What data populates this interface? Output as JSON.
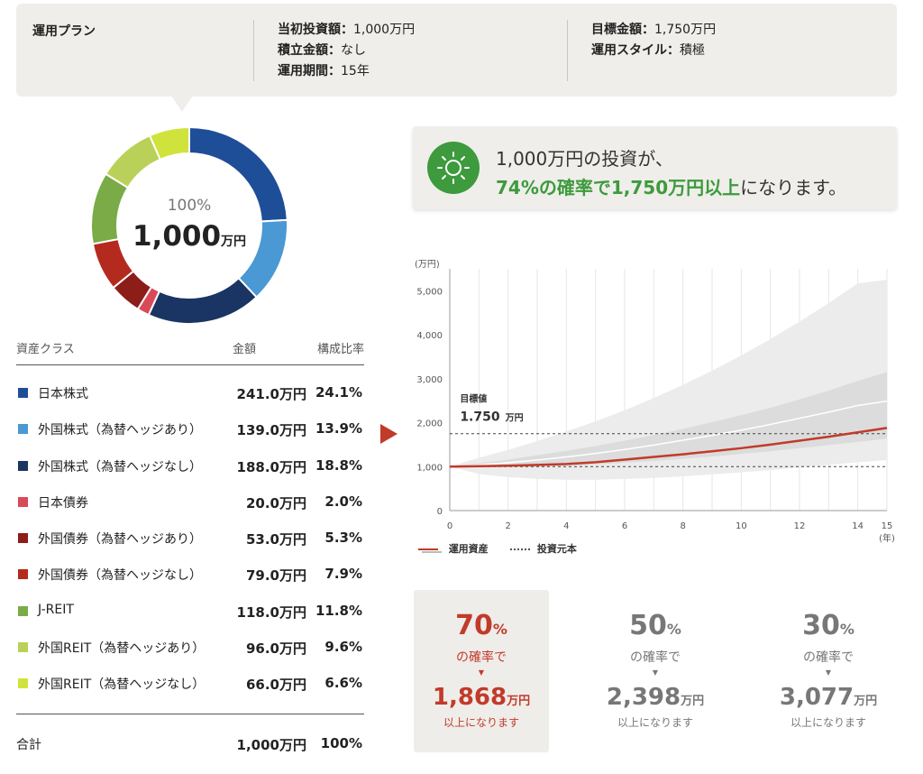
{
  "plan": {
    "title": "運用プラン",
    "initial_label": "当初投資額：",
    "initial_value": "1,000万円",
    "monthly_label": "積立金額：",
    "monthly_value": "なし",
    "period_label": "運用期間：",
    "period_value": "15年",
    "target_label": "目標金額：",
    "target_value": "1,750万円",
    "style_label": "運用スタイル：",
    "style_value": "積極"
  },
  "donut": {
    "percent": "100%",
    "total_number": "1,000",
    "total_unit": "万円"
  },
  "table": {
    "header_class": "資産クラス",
    "header_amount": "金額",
    "header_ratio": "構成比率",
    "rows": [
      {
        "name": "日本株式",
        "amount": "241.0万円",
        "ratio": "24.1%",
        "value": 24.1,
        "color": "#1f4e98"
      },
      {
        "name": "外国株式（為替ヘッジあり）",
        "amount": "139.0万円",
        "ratio": "13.9%",
        "value": 13.9,
        "color": "#4a98d4"
      },
      {
        "name": "外国株式（為替ヘッジなし）",
        "amount": "188.0万円",
        "ratio": "18.8%",
        "value": 18.8,
        "color": "#1a3563"
      },
      {
        "name": "日本債券",
        "amount": "20.0万円",
        "ratio": "2.0%",
        "value": 2.0,
        "color": "#d94a58"
      },
      {
        "name": "外国債券（為替ヘッジあり）",
        "amount": "53.0万円",
        "ratio": "5.3%",
        "value": 5.3,
        "color": "#8c1d18"
      },
      {
        "name": "外国債券（為替ヘッジなし）",
        "amount": "79.0万円",
        "ratio": "7.9%",
        "value": 7.9,
        "color": "#b52a1e"
      },
      {
        "name": "J-REIT",
        "amount": "118.0万円",
        "ratio": "11.8%",
        "value": 11.8,
        "color": "#7aab47"
      },
      {
        "name": "外国REIT（為替ヘッジあり）",
        "amount": "96.0万円",
        "ratio": "9.6%",
        "value": 9.6,
        "color": "#b9d159"
      },
      {
        "name": "外国REIT（為替ヘッジなし）",
        "amount": "66.0万円",
        "ratio": "6.6%",
        "value": 6.6,
        "color": "#cfe33c"
      }
    ],
    "total_label": "合計",
    "total_amount": "1,000万円",
    "total_ratio": "100%"
  },
  "message": {
    "line1": "1,000万円の投資が、",
    "highlight": "74%の確率で1,750万円以上",
    "line2_rest": "になります。"
  },
  "chart_data": {
    "type": "area",
    "yunit": "(万円)",
    "xunit": "(年)",
    "xlim": [
      0,
      15
    ],
    "ylim": [
      0,
      5500
    ],
    "xticks": [
      0,
      2,
      4,
      6,
      8,
      10,
      12,
      14,
      15
    ],
    "yticks": [
      0,
      1000,
      2000,
      3000,
      4000,
      5000
    ],
    "ytick_labels": [
      "0",
      "1,000",
      "2,000",
      "3,000",
      "4,000",
      "5,000"
    ],
    "target_label": "目標値",
    "target_value_text": "1.750",
    "target_unit": "万円",
    "target": 1750,
    "principal": 1000,
    "x": [
      0,
      1,
      2,
      3,
      4,
      5,
      6,
      7,
      8,
      9,
      10,
      11,
      12,
      13,
      14,
      15
    ],
    "outer_upper": [
      1000,
      1200,
      1380,
      1580,
      1800,
      2030,
      2280,
      2560,
      2860,
      3180,
      3530,
      3900,
      4300,
      4720,
      5170,
      5250
    ],
    "outer_lower": [
      1000,
      830,
      760,
      720,
      700,
      700,
      720,
      740,
      780,
      820,
      870,
      920,
      980,
      1040,
      1100,
      1150
    ],
    "inner_upper": [
      1000,
      1080,
      1160,
      1260,
      1360,
      1470,
      1590,
      1720,
      1860,
      2010,
      2170,
      2340,
      2530,
      2730,
      2950,
      3150
    ],
    "inner_lower": [
      1000,
      980,
      990,
      1000,
      1020,
      1050,
      1090,
      1130,
      1180,
      1230,
      1290,
      1350,
      1420,
      1490,
      1560,
      1640
    ],
    "median": [
      1000,
      1040,
      1090,
      1150,
      1220,
      1300,
      1390,
      1490,
      1600,
      1710,
      1830,
      1960,
      2100,
      2240,
      2390,
      2490
    ],
    "series": [
      {
        "name": "運用資産",
        "color": "#c23a2a",
        "values": [
          1000,
          1010,
          1020,
          1040,
          1060,
          1100,
          1160,
          1220,
          1280,
          1350,
          1420,
          1500,
          1590,
          1680,
          1780,
          1880
        ]
      },
      {
        "name": "投資元本",
        "color": "#555555",
        "values": [
          1000,
          1000,
          1000,
          1000,
          1000,
          1000,
          1000,
          1000,
          1000,
          1000,
          1000,
          1000,
          1000,
          1000,
          1000,
          1000
        ]
      }
    ]
  },
  "cards": [
    {
      "prob_num": "70",
      "prob_unit": "%",
      "line1": "の確率で",
      "tri": "▼",
      "amount_num": "1,868",
      "amount_unit": "万円",
      "line2": "以上になります",
      "selected": true
    },
    {
      "prob_num": "50",
      "prob_unit": "%",
      "line1": "の確率で",
      "tri": "▼",
      "amount_num": "2,398",
      "amount_unit": "万円",
      "line2": "以上になります",
      "selected": false
    },
    {
      "prob_num": "30",
      "prob_unit": "%",
      "line1": "の確率で",
      "tri": "▼",
      "amount_num": "3,077",
      "amount_unit": "万円",
      "line2": "以上になります",
      "selected": false
    }
  ]
}
